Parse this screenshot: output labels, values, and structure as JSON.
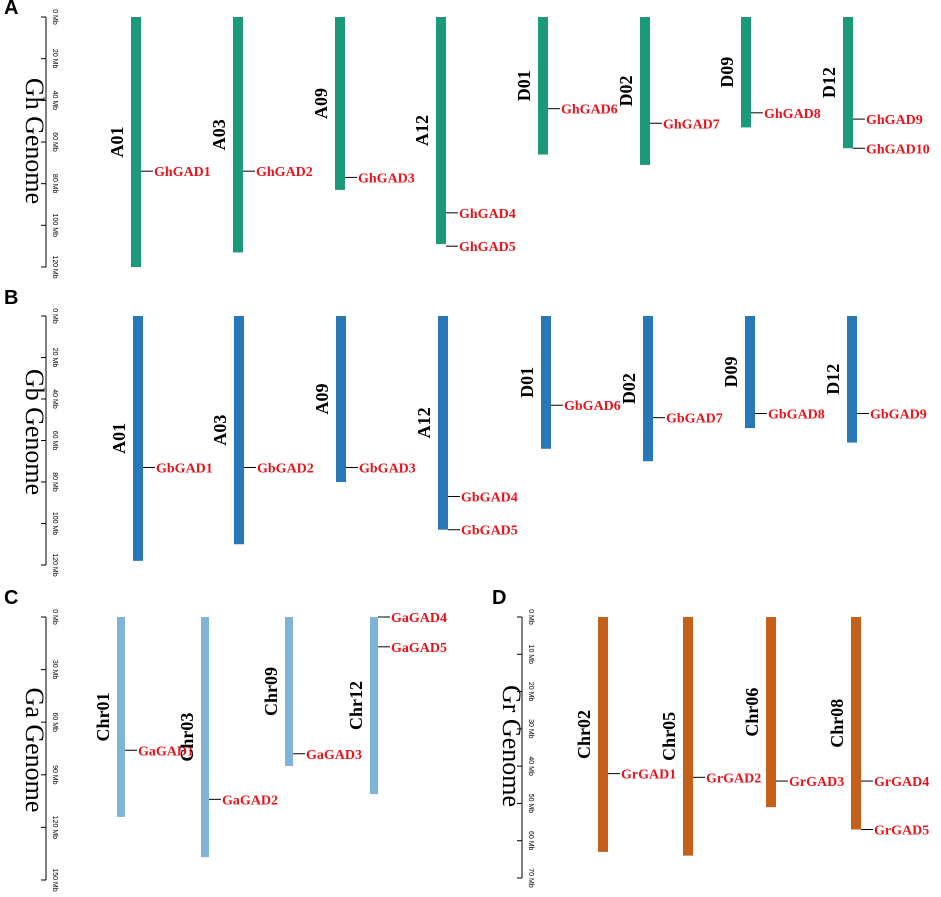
{
  "panels": [
    {
      "letter": "A",
      "genome_title": "Gh Genome",
      "color": "#1a9a7a",
      "axis": {
        "max": 120,
        "step": 20,
        "unit": "Mb"
      },
      "chromosomes": [
        {
          "name": "A01",
          "length": 120,
          "genes": [
            {
              "name": "GhGAD1",
              "pos": 74
            }
          ]
        },
        {
          "name": "A03",
          "length": 113,
          "genes": [
            {
              "name": "GhGAD2",
              "pos": 74
            }
          ]
        },
        {
          "name": "A09",
          "length": 83,
          "genes": [
            {
              "name": "GhGAD3",
              "pos": 77
            }
          ]
        },
        {
          "name": "A12",
          "length": 109,
          "genes": [
            {
              "name": "GhGAD4",
              "pos": 94
            },
            {
              "name": "GhGAD5",
              "pos": 110
            }
          ]
        },
        {
          "name": "D01",
          "length": 66,
          "genes": [
            {
              "name": "GhGAD6",
              "pos": 44
            }
          ]
        },
        {
          "name": "D02",
          "length": 71,
          "genes": [
            {
              "name": "GhGAD7",
              "pos": 51
            }
          ]
        },
        {
          "name": "D09",
          "length": 53,
          "genes": [
            {
              "name": "GhGAD8",
              "pos": 46
            }
          ]
        },
        {
          "name": "D12",
          "length": 63,
          "genes": [
            {
              "name": "GhGAD9",
              "pos": 49
            },
            {
              "name": "GhGAD10",
              "pos": 63
            }
          ]
        }
      ]
    },
    {
      "letter": "B",
      "genome_title": "Gb Genome",
      "color": "#2878b8",
      "axis": {
        "max": 120,
        "step": 20,
        "unit": "Mb"
      },
      "chromosomes": [
        {
          "name": "A01",
          "length": 118,
          "genes": [
            {
              "name": "GbGAD1",
              "pos": 73
            }
          ]
        },
        {
          "name": "A03",
          "length": 110,
          "genes": [
            {
              "name": "GbGAD2",
              "pos": 73
            }
          ]
        },
        {
          "name": "A09",
          "length": 80,
          "genes": [
            {
              "name": "GbGAD3",
              "pos": 73
            }
          ]
        },
        {
          "name": "A12",
          "length": 103,
          "genes": [
            {
              "name": "GbGAD4",
              "pos": 87
            },
            {
              "name": "GbGAD5",
              "pos": 103
            }
          ]
        },
        {
          "name": "D01",
          "length": 64,
          "genes": [
            {
              "name": "GbGAD6",
              "pos": 43
            }
          ]
        },
        {
          "name": "D02",
          "length": 70,
          "genes": [
            {
              "name": "GbGAD7",
              "pos": 49
            }
          ]
        },
        {
          "name": "D09",
          "length": 54,
          "genes": [
            {
              "name": "GbGAD8",
              "pos": 47
            }
          ]
        },
        {
          "name": "D12",
          "length": 61,
          "genes": [
            {
              "name": "GbGAD9",
              "pos": 47
            }
          ]
        }
      ]
    },
    {
      "letter": "C",
      "genome_title": "Ga Genome",
      "color": "#7fb3d8",
      "axis": {
        "max": 150,
        "step": 30,
        "unit": "Mb"
      },
      "chromosomes": [
        {
          "name": "Chr01",
          "length": 114,
          "genes": [
            {
              "name": "GaGAD1",
              "pos": 76
            }
          ]
        },
        {
          "name": "Chr03",
          "length": 137,
          "genes": [
            {
              "name": "GaGAD2",
              "pos": 104
            }
          ]
        },
        {
          "name": "Chr09",
          "length": 85,
          "genes": [
            {
              "name": "GaGAD3",
              "pos": 78
            }
          ]
        },
        {
          "name": "Chr12",
          "length": 101,
          "genes": [
            {
              "name": "GaGAD4",
              "pos": 0
            },
            {
              "name": "GaGAD5",
              "pos": 17
            }
          ]
        }
      ]
    },
    {
      "letter": "D",
      "genome_title": "Gr Genome",
      "color": "#c4601a",
      "axis": {
        "max": 70,
        "step": 10,
        "unit": "Mb"
      },
      "chromosomes": [
        {
          "name": "Chr02",
          "length": 63,
          "genes": [
            {
              "name": "GrGAD1",
              "pos": 42
            }
          ]
        },
        {
          "name": "Chr05",
          "length": 64,
          "genes": [
            {
              "name": "GrGAD2",
              "pos": 43
            }
          ]
        },
        {
          "name": "Chr06",
          "length": 51,
          "genes": [
            {
              "name": "GrGAD3",
              "pos": 44
            }
          ]
        },
        {
          "name": "Chr08",
          "length": 57,
          "genes": [
            {
              "name": "GrGAD4",
              "pos": 44
            },
            {
              "name": "GrGAD5",
              "pos": 57
            }
          ]
        }
      ]
    }
  ]
}
